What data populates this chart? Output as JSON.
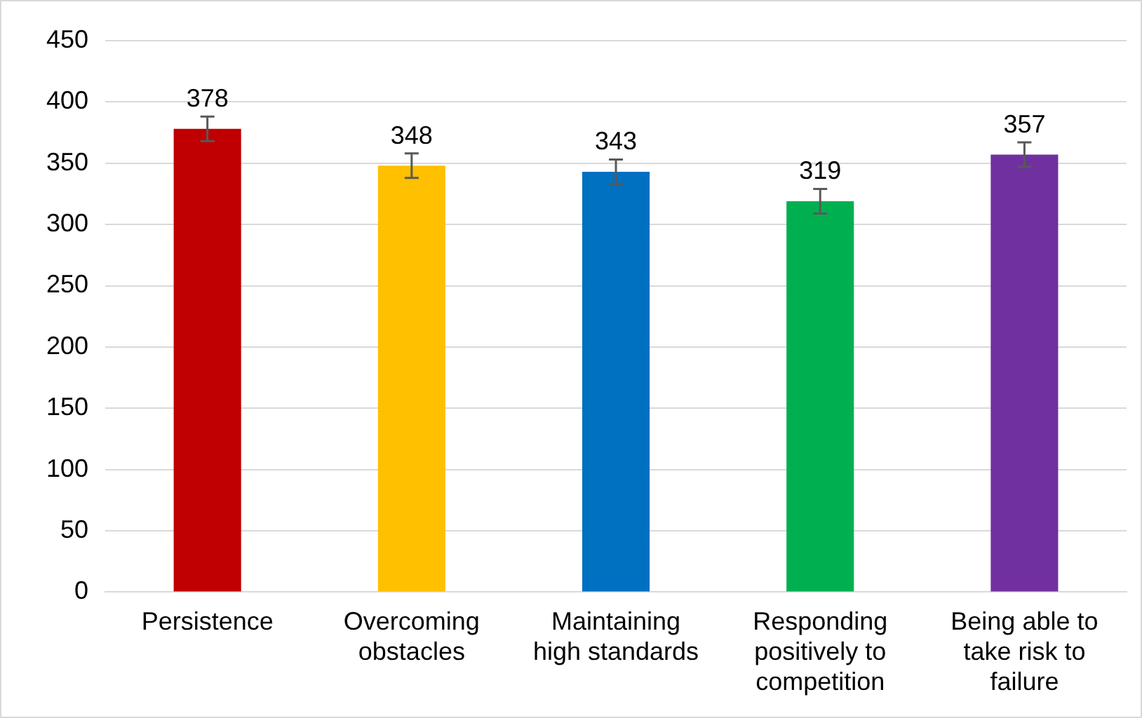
{
  "chart_data": {
    "type": "bar",
    "categories": [
      "Persistence",
      "Overcoming obstacles",
      "Maintaining high standards",
      "Responding positively to competition",
      "Being able to take risk to failure"
    ],
    "values": [
      378,
      348,
      343,
      319,
      357
    ],
    "colors": [
      "#c00000",
      "#ffc000",
      "#0070c0",
      "#00b050",
      "#7030a0"
    ],
    "errors": [
      10,
      10,
      10,
      10,
      10
    ],
    "ylim": [
      0,
      450
    ],
    "yticks": [
      0,
      50,
      100,
      150,
      200,
      250,
      300,
      350,
      400,
      450
    ],
    "grid": "y",
    "data_labels": true,
    "legend": false
  }
}
